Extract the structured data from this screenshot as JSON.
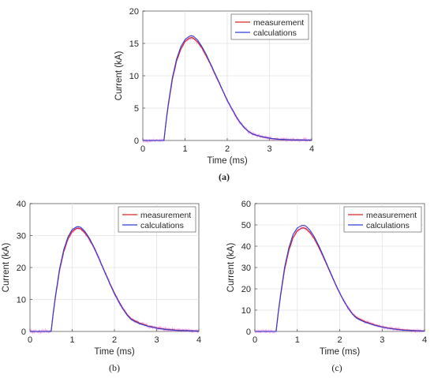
{
  "chart_data": [
    {
      "type": "line",
      "caption": "(a)",
      "xlabel": "Time (ms)",
      "ylabel": "Current (kA)",
      "xlim": [
        0,
        4
      ],
      "ylim": [
        0,
        20
      ],
      "xticks": [
        0,
        1,
        2,
        3,
        4
      ],
      "yticks": [
        0,
        5,
        10,
        15,
        20
      ],
      "grid": true,
      "legend_position": "top-right",
      "series": [
        {
          "name": "measurement",
          "color": "#d62728",
          "noise": 0.35,
          "x": [
            0,
            0.5,
            0.55,
            0.6,
            0.7,
            0.8,
            0.9,
            1.0,
            1.1,
            1.15,
            1.2,
            1.3,
            1.4,
            1.5,
            1.6,
            1.7,
            1.8,
            1.9,
            2.0,
            2.1,
            2.2,
            2.3,
            2.4,
            2.5,
            2.6,
            2.8,
            3.0,
            3.2,
            3.5,
            4.0
          ],
          "y": [
            0,
            0,
            2.8,
            5.3,
            9.4,
            12.3,
            14.1,
            15.3,
            15.8,
            15.9,
            15.8,
            15.2,
            14.3,
            13.1,
            11.8,
            10.4,
            9.0,
            7.6,
            6.2,
            5.0,
            3.8,
            2.8,
            2.0,
            1.4,
            1.0,
            0.6,
            0.35,
            0.2,
            0.1,
            0.05
          ]
        },
        {
          "name": "calculations",
          "color": "#2f3fd6",
          "noise": 0,
          "x": [
            0,
            0.5,
            0.55,
            0.6,
            0.7,
            0.8,
            0.9,
            1.0,
            1.1,
            1.15,
            1.2,
            1.3,
            1.4,
            1.5,
            1.6,
            1.7,
            1.8,
            1.9,
            2.0,
            2.1,
            2.2,
            2.3,
            2.4,
            2.5,
            2.6,
            2.8,
            3.0,
            3.2,
            3.5,
            4.0
          ],
          "y": [
            0,
            0,
            2.9,
            5.5,
            9.7,
            12.6,
            14.5,
            15.6,
            16.1,
            16.2,
            16.1,
            15.5,
            14.5,
            13.3,
            11.9,
            10.5,
            9.1,
            7.6,
            6.2,
            5.0,
            3.8,
            2.8,
            2.0,
            1.4,
            1.0,
            0.6,
            0.35,
            0.2,
            0.1,
            0.05
          ]
        }
      ]
    },
    {
      "type": "line",
      "caption": "(b)",
      "xlabel": "Time (ms)",
      "ylabel": "Current (kA)",
      "xlim": [
        0,
        4
      ],
      "ylim": [
        0,
        40
      ],
      "xticks": [
        0,
        1,
        2,
        3,
        4
      ],
      "yticks": [
        0,
        10,
        20,
        30,
        40
      ],
      "grid": true,
      "legend_position": "top-right",
      "series": [
        {
          "name": "measurement",
          "color": "#d62728",
          "noise": 0.45,
          "x": [
            0,
            0.5,
            0.55,
            0.6,
            0.7,
            0.8,
            0.9,
            1.0,
            1.1,
            1.15,
            1.2,
            1.3,
            1.4,
            1.5,
            1.6,
            1.7,
            1.8,
            1.9,
            2.0,
            2.1,
            2.2,
            2.3,
            2.4,
            2.5,
            2.6,
            2.8,
            3.0,
            3.2,
            3.5,
            4.0
          ],
          "y": [
            0,
            0,
            5.5,
            10.5,
            19.0,
            25.0,
            29.0,
            31.3,
            32.2,
            32.3,
            32.1,
            30.9,
            29.0,
            26.6,
            23.8,
            20.8,
            17.8,
            14.8,
            12.0,
            9.5,
            7.2,
            5.3,
            3.9,
            3.2,
            2.6,
            1.7,
            1.1,
            0.7,
            0.35,
            0.1
          ]
        },
        {
          "name": "calculations",
          "color": "#2f3fd6",
          "noise": 0,
          "x": [
            0,
            0.5,
            0.55,
            0.6,
            0.7,
            0.8,
            0.9,
            1.0,
            1.1,
            1.15,
            1.2,
            1.3,
            1.4,
            1.5,
            1.6,
            1.7,
            1.8,
            1.9,
            2.0,
            2.1,
            2.2,
            2.3,
            2.4,
            2.5,
            2.6,
            2.8,
            3.0,
            3.2,
            3.5,
            4.0
          ],
          "y": [
            0,
            0,
            5.7,
            10.8,
            19.5,
            25.6,
            29.6,
            31.9,
            32.7,
            32.8,
            32.6,
            31.3,
            29.3,
            26.8,
            23.9,
            20.8,
            17.7,
            14.7,
            11.8,
            9.3,
            7.0,
            5.1,
            3.7,
            3.0,
            2.4,
            1.6,
            1.0,
            0.65,
            0.3,
            0.1
          ]
        }
      ]
    },
    {
      "type": "line",
      "caption": "(c)",
      "xlabel": "Time (ms)",
      "ylabel": "Current (kA)",
      "xlim": [
        0,
        4
      ],
      "ylim": [
        0,
        60
      ],
      "xticks": [
        0,
        1,
        2,
        3,
        4
      ],
      "yticks": [
        0,
        10,
        20,
        30,
        40,
        50,
        60
      ],
      "grid": true,
      "legend_position": "top-right",
      "series": [
        {
          "name": "measurement",
          "color": "#d62728",
          "noise": 0.3,
          "x": [
            0,
            0.5,
            0.55,
            0.6,
            0.7,
            0.8,
            0.9,
            1.0,
            1.1,
            1.15,
            1.2,
            1.3,
            1.4,
            1.5,
            1.6,
            1.7,
            1.8,
            1.9,
            2.0,
            2.1,
            2.2,
            2.3,
            2.4,
            2.5,
            2.6,
            2.8,
            3.0,
            3.2,
            3.5,
            4.0
          ],
          "y": [
            0,
            0,
            8.5,
            16.0,
            29.0,
            38.0,
            44.0,
            47.3,
            48.5,
            48.6,
            48.3,
            46.4,
            43.5,
            39.8,
            35.6,
            31.1,
            26.6,
            22.2,
            18.0,
            14.3,
            11.0,
            8.3,
            6.5,
            5.5,
            4.6,
            3.2,
            2.1,
            1.4,
            0.7,
            0.2
          ]
        },
        {
          "name": "calculations",
          "color": "#2f3fd6",
          "noise": 0,
          "x": [
            0,
            0.5,
            0.55,
            0.6,
            0.7,
            0.8,
            0.9,
            1.0,
            1.1,
            1.15,
            1.2,
            1.3,
            1.4,
            1.5,
            1.6,
            1.7,
            1.8,
            1.9,
            2.0,
            2.1,
            2.2,
            2.3,
            2.4,
            2.5,
            2.6,
            2.8,
            3.0,
            3.2,
            3.5,
            4.0
          ],
          "y": [
            0,
            0,
            8.8,
            16.6,
            30.0,
            39.2,
            45.5,
            48.6,
            49.7,
            49.8,
            49.5,
            47.5,
            44.4,
            40.5,
            36.1,
            31.4,
            26.8,
            22.3,
            18.0,
            14.2,
            10.9,
            8.1,
            6.2,
            5.2,
            4.3,
            3.0,
            2.0,
            1.3,
            0.6,
            0.2
          ]
        }
      ]
    }
  ]
}
